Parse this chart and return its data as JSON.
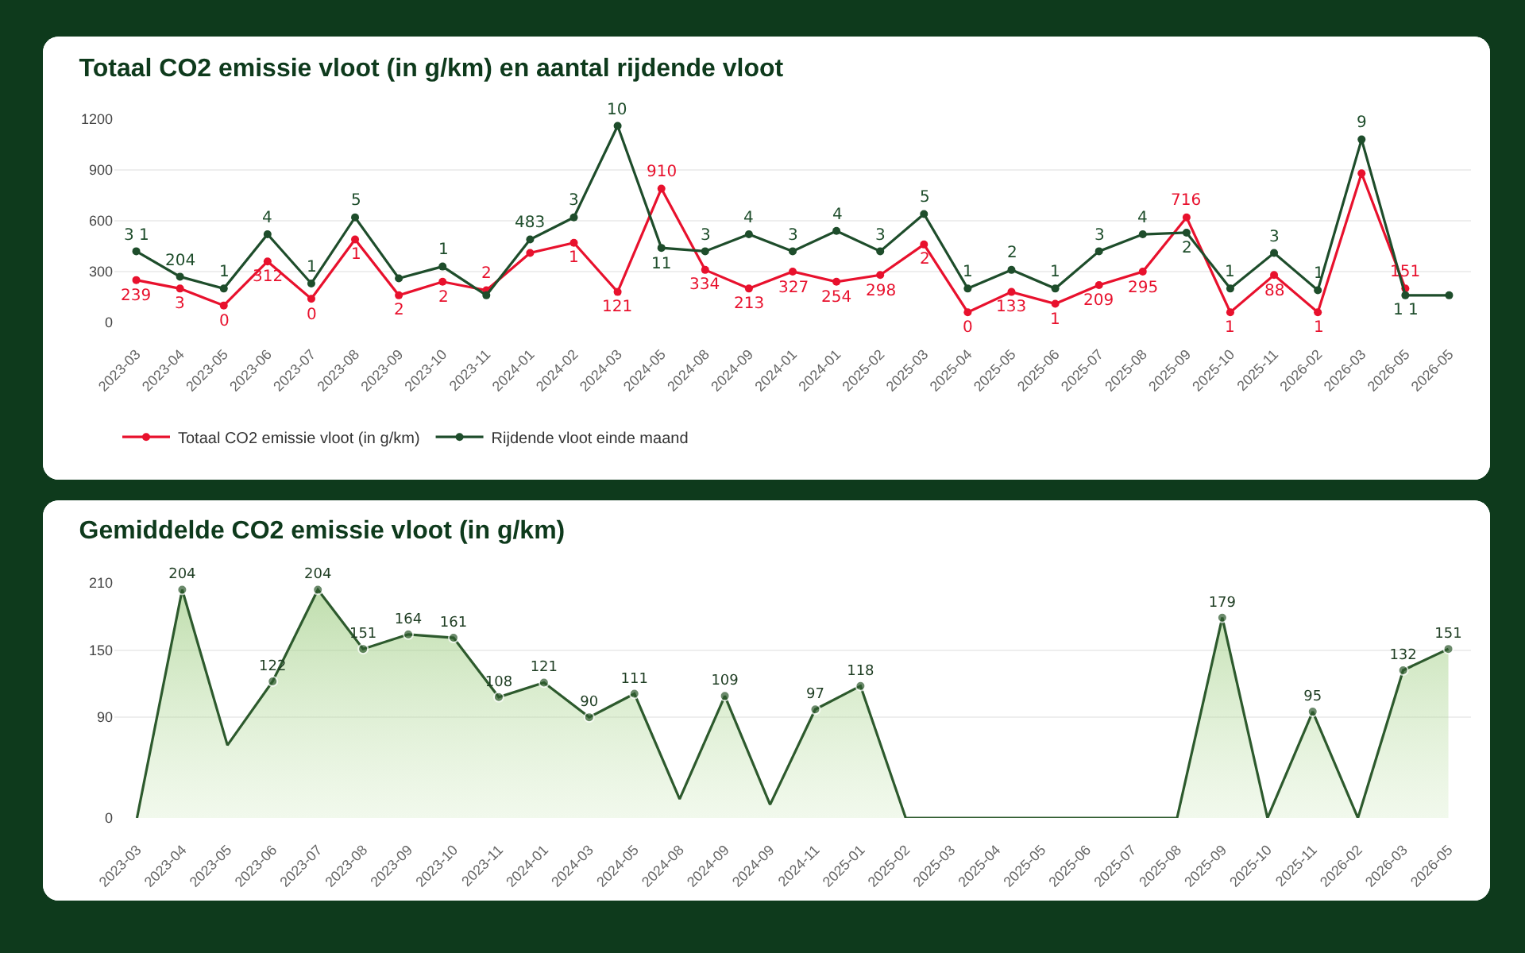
{
  "chart_data": [
    {
      "type": "line",
      "title": "Totaal CO2 emissie vloot (in g/km) en aantal rijdende vloot",
      "categories": [
        "2023-03",
        "2023-04",
        "2023-05",
        "2023-06",
        "2023-07",
        "2023-08",
        "2023-09",
        "2023-10",
        "2023-11",
        "2024-01",
        "2024-02",
        "2024-03",
        "2024-05",
        "2024-08",
        "2024-09",
        "2024-01",
        "2024-01",
        "2025-02",
        "2025-03",
        "2025-04",
        "2025-05",
        "2025-06",
        "2025-07",
        "2025-08",
        "2025-09",
        "2025-10",
        "2025-11",
        "2026-02",
        "2026-03",
        "2026-05",
        "2026-05"
      ],
      "series": [
        {
          "name": "Totaal CO2 emissie vloot (in g/km)",
          "color": "#e8112d",
          "values": [
            250,
            200,
            100,
            360,
            140,
            490,
            160,
            240,
            190,
            410,
            470,
            180,
            790,
            310,
            200,
            300,
            240,
            280,
            460,
            60,
            180,
            110,
            220,
            300,
            620,
            60,
            280,
            60,
            880,
            200,
            null
          ]
        },
        {
          "name": "Rijdende vloot einde maand",
          "color": "#1e4d2b",
          "values": [
            420,
            270,
            200,
            520,
            230,
            620,
            260,
            330,
            160,
            490,
            620,
            1160,
            440,
            420,
            520,
            420,
            540,
            420,
            640,
            200,
            310,
            200,
            420,
            520,
            530,
            200,
            410,
            190,
            1080,
            160,
            160
          ]
        }
      ],
      "annotations": [
        {
          "text": "239",
          "x": "2023-03",
          "y": 250
        },
        {
          "text": "3",
          "x": "2023-04",
          "y": 200
        },
        {
          "text": "0",
          "x": "2023-05",
          "y": 100
        },
        {
          "text": "312",
          "x": "2023-06",
          "y": 360
        },
        {
          "text": "0",
          "x": "2023-07",
          "y": 140
        },
        {
          "text": "1",
          "x": "2023-08",
          "y": 490
        },
        {
          "text": "2",
          "x": "2023-09",
          "y": 160
        },
        {
          "text": "2",
          "x": "2023-10",
          "y": 240
        },
        {
          "text": "2",
          "x": "2023-11",
          "y": 190
        },
        {
          "text": "1",
          "x": "2024-02",
          "y": 470
        },
        {
          "text": "121",
          "x": "2024-03",
          "y": 180
        },
        {
          "text": "910",
          "x": "2024-05",
          "y": 790
        },
        {
          "text": "334",
          "x": "2024-08",
          "y": 310
        },
        {
          "text": "213",
          "x": "2024-09",
          "y": 200
        },
        {
          "text": "327",
          "y": 300
        },
        {
          "text": "254",
          "y": 240
        },
        {
          "text": "298",
          "x": "2025-02",
          "y": 280
        },
        {
          "text": "2",
          "x": "2025-03",
          "y": 460
        },
        {
          "text": "0",
          "x": "2025-04",
          "y": 60
        },
        {
          "text": "133",
          "x": "2025-05",
          "y": 180
        },
        {
          "text": "1",
          "x": "2025-06",
          "y": 110
        },
        {
          "text": "209",
          "x": "2025-07",
          "y": 220
        },
        {
          "text": "295",
          "x": "2025-08",
          "y": 300
        },
        {
          "text": "716",
          "x": "2025-09",
          "y": 620
        },
        {
          "text": "1",
          "x": "2025-10",
          "y": 60
        },
        {
          "text": "88",
          "x": "2025-11",
          "y": 280
        },
        {
          "text": "1",
          "x": "2026-02",
          "y": 60
        },
        {
          "text": "151",
          "x": "2026-05",
          "y": 200
        },
        {
          "text": "3 1",
          "x": "2023-03",
          "y": 420
        },
        {
          "text": "204",
          "x": "2023-04",
          "y": 270
        },
        {
          "text": "1",
          "x": "2023-05",
          "y": 200
        },
        {
          "text": "4",
          "x": "2023-06",
          "y": 520
        },
        {
          "text": "1",
          "x": "2023-07",
          "y": 230
        },
        {
          "text": "5",
          "x": "2023-08",
          "y": 620
        },
        {
          "text": "1",
          "x": "2023-10",
          "y": 330
        },
        {
          "text": "483",
          "x": "2024-01",
          "y": 490
        },
        {
          "text": "3",
          "x": "2024-02",
          "y": 620
        },
        {
          "text": "10",
          "x": "2024-03",
          "y": 1160
        },
        {
          "text": "11",
          "x": "2024-05",
          "y": 440
        },
        {
          "text": "3",
          "x": "2024-08",
          "y": 420
        },
        {
          "text": "4",
          "x": "2024-09",
          "y": 520
        },
        "3",
        "4",
        {
          "text": "3",
          "x": "2025-02",
          "y": 420
        },
        {
          "text": "5",
          "x": "2025-03",
          "y": 640
        },
        {
          "text": "1",
          "x": "2025-04",
          "y": 200
        },
        {
          "text": "2",
          "x": "2025-05",
          "y": 310
        },
        {
          "text": "1",
          "x": "2025-06",
          "y": 200
        },
        {
          "text": "3",
          "x": "2025-07",
          "y": 420
        },
        {
          "text": "4",
          "x": "2025-08",
          "y": 520
        },
        {
          "text": "2",
          "x": "2025-09",
          "y": 530
        },
        {
          "text": "1",
          "x": "2025-10",
          "y": 200
        },
        {
          "text": "3",
          "x": "2025-11",
          "y": 410
        },
        {
          "text": "1",
          "x": "2026-02",
          "y": 190
        },
        {
          "text": "9",
          "x": "2026-03",
          "y": 1080
        },
        {
          "text": "1 1",
          "x": "2026-05",
          "y": 160
        }
      ],
      "ylim": [
        0,
        1200
      ],
      "yticks": [
        0,
        300,
        600,
        900,
        1200
      ],
      "grid": "y",
      "legend": "bottom left",
      "marker": "circle"
    },
    {
      "type": "area",
      "title": "Gemiddelde CO2 emissie vloot (in g/km)",
      "categories": [
        "2023-03",
        "2023-04",
        "2023-05",
        "2023-06",
        "2023-07",
        "2023-08",
        "2023-09",
        "2023-10",
        "2023-11",
        "2024-01",
        "2024-03",
        "2024-05",
        "2024-08",
        "2024-09",
        "2024-09",
        "2024-11",
        "2025-01",
        "2025-02",
        "2025-03",
        "2025-04",
        "2025-05",
        "2025-06",
        "2025-07",
        "2025-08",
        "2025-09",
        "2025-10",
        "2025-11",
        "2026-02",
        "2026-03",
        "2026-05"
      ],
      "color": "#2d5a2d",
      "values": [
        0,
        204,
        65,
        122,
        204,
        151,
        164,
        161,
        108,
        121,
        90,
        111,
        17,
        109,
        12,
        97,
        118,
        0,
        0,
        0,
        0,
        0,
        0,
        0,
        179,
        0,
        95,
        0,
        132,
        151
      ],
      "value_labels": [
        null,
        "204",
        null,
        "122",
        "204",
        "151",
        "164",
        "161",
        "108",
        "121",
        "90",
        "111",
        null,
        "109",
        null,
        "97",
        "118",
        null,
        null,
        null,
        null,
        null,
        null,
        null,
        "179",
        null,
        "95",
        null,
        "132",
        "151"
      ],
      "ylim": [
        0,
        210
      ],
      "yticks": [
        0,
        90,
        150,
        210
      ],
      "grid": "y",
      "marker": "circle"
    }
  ]
}
